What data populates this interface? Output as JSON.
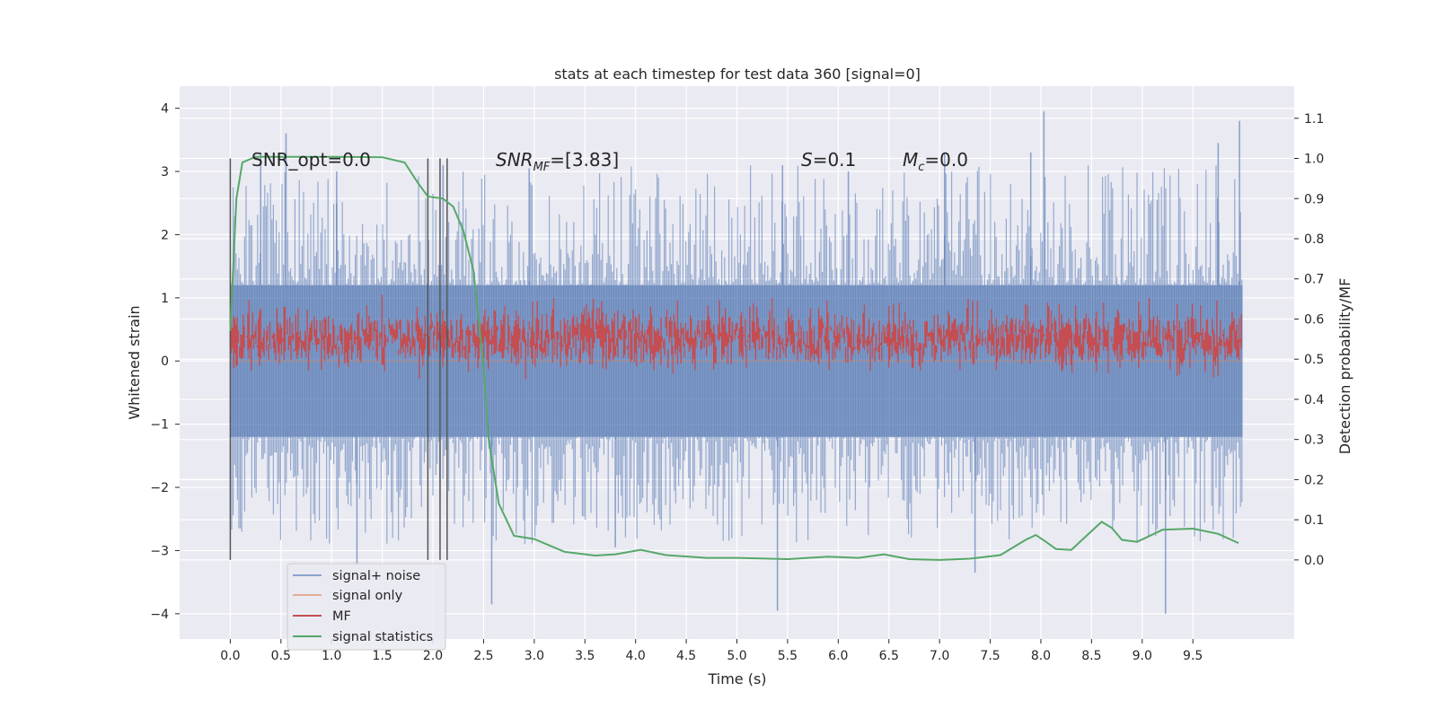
{
  "chart_data": {
    "type": "line",
    "title": "stats at each timestep for test data 360 [signal=0]",
    "xlabel": "Time (s)",
    "ylabel_left": "Whitened strain",
    "ylabel_right": "Detection probability/MF",
    "xlim": [
      -0.5,
      10.5
    ],
    "ylim_left": [
      -4.4,
      4.35
    ],
    "ylim_right": [
      -0.197,
      1.18
    ],
    "x_ticks": [
      "0.0",
      "0.5",
      "1.0",
      "1.5",
      "2.0",
      "2.5",
      "3.0",
      "3.5",
      "4.0",
      "4.5",
      "5.0",
      "5.5",
      "6.0",
      "6.5",
      "7.0",
      "7.5",
      "8.0",
      "8.5",
      "9.0",
      "9.5"
    ],
    "y_ticks_left": [
      "4",
      "3",
      "2",
      "1",
      "0",
      "−1",
      "−2",
      "−3",
      "−4"
    ],
    "y_ticks_right": [
      "1.1",
      "1.0",
      "0.9",
      "0.8",
      "0.7",
      "0.6",
      "0.5",
      "0.4",
      "0.3",
      "0.2",
      "0.1",
      "0.0"
    ],
    "grid": true,
    "legend_position": "lower-left",
    "colors": {
      "background": "#eaeaf2",
      "grid": "#ffffff",
      "signal_noise": "#4c72b0",
      "signal_only": "#dd8452",
      "mf": "#c44e52",
      "signal_statistics": "#55a868",
      "markers": "#555555"
    },
    "annotations": {
      "snr_opt": "SNR_opt=0.0",
      "snr_mf_label": "SNR",
      "snr_mf_sub": "MF",
      "snr_mf_value": "=[3.83]",
      "s_label": "S",
      "s_value": "=0.1",
      "mc_label": "M",
      "mc_sub": "c",
      "mc_value": "=0.0"
    },
    "marker_lines_x": [
      0.0,
      1.95,
      2.07,
      2.14
    ],
    "series": [
      {
        "name": "signal+ noise",
        "axis": "left",
        "style": "noise band",
        "x_range": [
          0.0,
          9.99
        ],
        "envelope": [
          -1.2,
          1.2
        ],
        "peaks_max": [
          [
            0.3,
            3.3
          ],
          [
            0.55,
            3.6
          ],
          [
            1.05,
            3.0
          ],
          [
            2.1,
            3.1
          ],
          [
            2.95,
            3.05
          ],
          [
            5.45,
            3.1
          ],
          [
            6.1,
            3.0
          ],
          [
            7.05,
            3.3
          ],
          [
            7.9,
            3.3
          ],
          [
            8.03,
            3.95
          ],
          [
            9.75,
            3.45
          ],
          [
            9.96,
            3.8
          ]
        ],
        "peaks_min": [
          [
            2.58,
            -3.85
          ],
          [
            5.4,
            -3.95
          ],
          [
            7.35,
            -3.35
          ],
          [
            9.23,
            -4.0
          ],
          [
            1.25,
            -3.2
          ],
          [
            3.8,
            -2.95
          ]
        ]
      },
      {
        "name": "signal only",
        "axis": "left",
        "x": [
          0.0,
          9.99
        ],
        "y": [
          0.0,
          0.0
        ]
      },
      {
        "name": "MF",
        "axis": "right",
        "style": "noise band",
        "x_range": [
          0.0,
          9.99
        ],
        "mean": 0.55,
        "envelope": [
          0.5,
          0.62
        ]
      },
      {
        "name": "signal statistics",
        "axis": "right",
        "x": [
          0.0,
          0.06,
          0.12,
          0.25,
          0.5,
          1.0,
          1.5,
          1.72,
          1.85,
          1.95,
          2.1,
          2.2,
          2.3,
          2.4,
          2.5,
          2.55,
          2.65,
          2.8,
          3.0,
          3.3,
          3.6,
          3.8,
          4.05,
          4.3,
          4.7,
          5.0,
          5.5,
          5.9,
          6.2,
          6.45,
          6.7,
          7.0,
          7.3,
          7.6,
          7.85,
          7.95,
          8.05,
          8.15,
          8.3,
          8.45,
          8.6,
          8.7,
          8.8,
          8.95,
          9.2,
          9.5,
          9.75,
          9.95
        ],
        "y": [
          0.57,
          0.9,
          0.99,
          1.004,
          1.004,
          1.004,
          1.003,
          0.99,
          0.94,
          0.905,
          0.9,
          0.88,
          0.82,
          0.72,
          0.48,
          0.3,
          0.14,
          0.06,
          0.052,
          0.02,
          0.011,
          0.014,
          0.025,
          0.012,
          0.005,
          0.005,
          0.002,
          0.008,
          0.005,
          0.014,
          0.002,
          0.0,
          0.003,
          0.012,
          0.05,
          0.062,
          0.045,
          0.027,
          0.025,
          0.06,
          0.095,
          0.08,
          0.05,
          0.045,
          0.075,
          0.078,
          0.065,
          0.042
        ]
      }
    ]
  }
}
